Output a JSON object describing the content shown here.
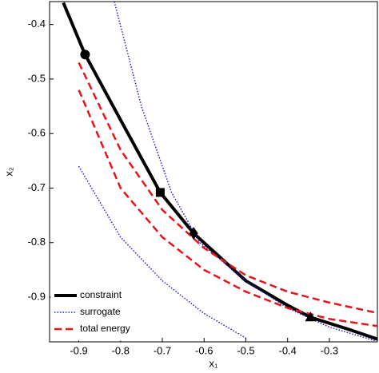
{
  "chart_data": {
    "type": "line",
    "xlabel": "x₁",
    "ylabel": "x₂",
    "xlim": [
      -0.97,
      -0.185
    ],
    "ylim": [
      -0.982,
      -0.358
    ],
    "xticks": [
      -0.9,
      -0.8,
      -0.7,
      -0.6,
      -0.5,
      -0.4,
      -0.3
    ],
    "yticks": [
      -0.9,
      -0.8,
      -0.7,
      -0.6,
      -0.5,
      -0.4
    ],
    "legend": "lower left",
    "series": [
      {
        "name": "constraint",
        "color": "#000000",
        "linestyle": "solid",
        "x": [
          -0.937,
          -0.885,
          -0.8,
          -0.705,
          -0.625,
          -0.5,
          -0.4,
          -0.345,
          -0.25,
          -0.185
        ],
        "y": [
          -0.36,
          -0.455,
          -0.575,
          -0.708,
          -0.783,
          -0.87,
          -0.915,
          -0.937,
          -0.96,
          -0.977
        ]
      },
      {
        "name": "surrogate",
        "color": "#1f1fcf",
        "linestyle": "dotted",
        "x": [
          -0.815,
          -0.75,
          -0.678,
          -0.61,
          -0.5,
          -0.4,
          -0.3,
          -0.19,
          null,
          -0.9,
          -0.8,
          -0.7,
          -0.6,
          -0.5
        ],
        "y": [
          -0.358,
          -0.55,
          -0.708,
          -0.8,
          -0.87,
          -0.92,
          -0.955,
          -0.98,
          null,
          -0.66,
          -0.79,
          -0.87,
          -0.93,
          -0.975
        ]
      },
      {
        "name": "total energy",
        "color": "#e8141c",
        "linestyle": "dashed",
        "x": [
          -0.9,
          -0.8,
          -0.7,
          -0.6,
          -0.5,
          -0.4,
          -0.3,
          -0.185,
          null,
          -0.9,
          -0.8,
          -0.7,
          -0.6,
          -0.5,
          -0.4,
          -0.3,
          -0.185
        ],
        "y": [
          -0.52,
          -0.7,
          -0.79,
          -0.85,
          -0.89,
          -0.92,
          -0.94,
          -0.953,
          null,
          -0.47,
          -0.63,
          -0.74,
          -0.81,
          -0.86,
          -0.89,
          -0.91,
          -0.929
        ]
      }
    ],
    "points": [
      {
        "x": -0.885,
        "y": -0.455,
        "marker": "circle"
      },
      {
        "x": -0.705,
        "y": -0.708,
        "marker": "square"
      },
      {
        "x": -0.625,
        "y": -0.783,
        "marker": "diamond"
      },
      {
        "x": -0.345,
        "y": -0.937,
        "marker": "triangle"
      }
    ]
  }
}
